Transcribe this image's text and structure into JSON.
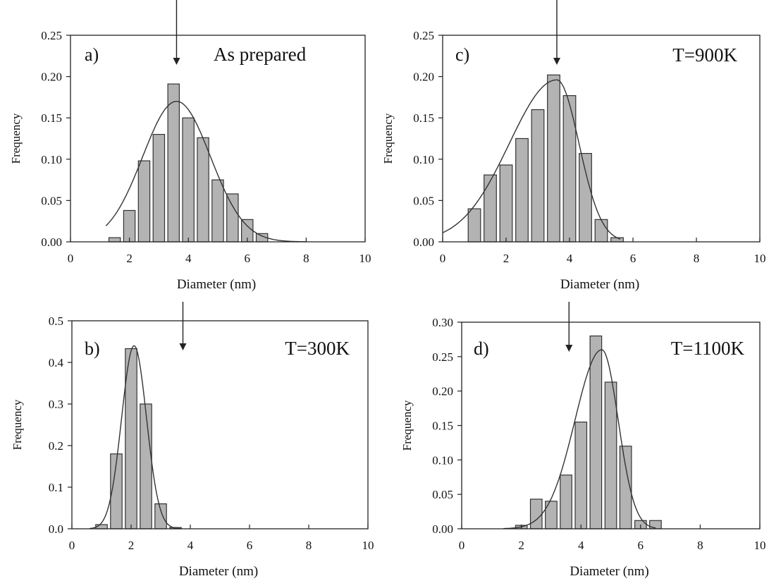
{
  "chart_data": [
    {
      "type": "bar",
      "panel": "a)",
      "annotation": "As prepared",
      "xlabel": "Diameter (nm)",
      "ylabel": "Frequency",
      "xlim": [
        0,
        10
      ],
      "ylim": [
        0,
        0.25
      ],
      "xticks": [
        "0",
        "2",
        "4",
        "6",
        "8",
        "10"
      ],
      "yticks": [
        "0.00",
        "0.05",
        "0.10",
        "0.15",
        "0.20",
        "0.25"
      ],
      "bins": [
        1.5,
        2.0,
        2.5,
        3.0,
        3.5,
        4.0,
        4.5,
        5.0,
        5.5,
        6.0,
        6.5
      ],
      "values": [
        0.005,
        0.038,
        0.098,
        0.13,
        0.191,
        0.15,
        0.126,
        0.075,
        0.058,
        0.027,
        0.01
      ],
      "fit": {
        "mean": 3.6,
        "sigma": 1.15,
        "amp": 0.17,
        "from": 1.2,
        "to": 8.0
      },
      "arrow_x": 3.6
    },
    {
      "type": "bar",
      "panel": "b)",
      "annotation": "T=300K",
      "xlabel": "Diameter (nm)",
      "ylabel": "Frequency",
      "xlim": [
        0,
        10
      ],
      "ylim": [
        0,
        0.5
      ],
      "xticks": [
        "0",
        "2",
        "4",
        "6",
        "8",
        "10"
      ],
      "yticks": [
        "0.0",
        "0.1",
        "0.2",
        "0.3",
        "0.4",
        "0.5"
      ],
      "bins": [
        1.0,
        1.5,
        2.0,
        2.5,
        3.0,
        3.5
      ],
      "values": [
        0.01,
        0.18,
        0.433,
        0.3,
        0.06,
        0.003
      ],
      "fit": {
        "mean": 2.1,
        "sigma": 0.42,
        "amp": 0.44,
        "from": 0.6,
        "to": 3.7
      },
      "arrow_x": 3.75
    },
    {
      "type": "bar",
      "panel": "c)",
      "annotation": "T=900K",
      "xlabel": "Diameter (nm)",
      "ylabel": "Frequency",
      "xlim": [
        0,
        10
      ],
      "ylim": [
        0,
        0.25
      ],
      "xticks": [
        "0",
        "2",
        "4",
        "6",
        "8",
        "10"
      ],
      "yticks": [
        "0.00",
        "0.05",
        "0.10",
        "0.15",
        "0.20",
        "0.25"
      ],
      "bins": [
        1.0,
        1.5,
        2.0,
        2.5,
        3.0,
        3.5,
        4.0,
        4.5,
        5.0,
        5.5
      ],
      "values": [
        0.04,
        0.081,
        0.093,
        0.125,
        0.16,
        0.202,
        0.177,
        0.107,
        0.027,
        0.005
      ],
      "fit": {
        "mean": 3.6,
        "sigma_left": 1.5,
        "sigma_right": 0.7,
        "amp": 0.196,
        "from": 0.0,
        "to": 5.6
      },
      "arrow_x": 3.6
    },
    {
      "type": "bar",
      "panel": "d)",
      "annotation": "T=1100K",
      "xlabel": "Diameter (nm)",
      "ylabel": "Frequency",
      "xlim": [
        0,
        10
      ],
      "ylim": [
        0,
        0.3
      ],
      "xticks": [
        "0",
        "2",
        "4",
        "6",
        "8",
        "10"
      ],
      "yticks": [
        "0.00",
        "0.05",
        "0.10",
        "0.15",
        "0.20",
        "0.25",
        "0.30"
      ],
      "bins": [
        2.0,
        2.5,
        3.0,
        3.5,
        4.0,
        4.5,
        5.0,
        5.5,
        6.0,
        6.5
      ],
      "values": [
        0.005,
        0.043,
        0.04,
        0.078,
        0.155,
        0.28,
        0.213,
        0.12,
        0.012,
        0.012
      ],
      "fit": {
        "mean": 4.7,
        "sigma_left": 0.9,
        "sigma_right": 0.55,
        "amp": 0.26,
        "from": 1.4,
        "to": 6.5
      },
      "arrow_x": 3.6
    }
  ]
}
